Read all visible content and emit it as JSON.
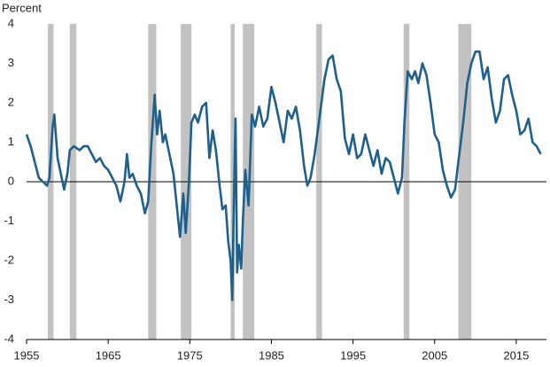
{
  "chart_data": {
    "type": "line",
    "y_label": "Percent",
    "color": "#1f5f8b",
    "shade_color": "#c2c2c2",
    "zero_line": true,
    "xlim": [
      1955,
      2018.7
    ],
    "xticks": [
      1955,
      1965,
      1975,
      1985,
      1995,
      2005,
      2015
    ],
    "ylim": [
      -4,
      4
    ],
    "yticks": [
      -4,
      -3,
      -2,
      -1,
      0,
      1,
      2,
      3,
      4
    ],
    "shaded_ranges": [
      [
        1957.6,
        1958.3
      ],
      [
        1960.3,
        1961.1
      ],
      [
        1969.9,
        1970.9
      ],
      [
        1973.9,
        1975.2
      ],
      [
        1980.0,
        1980.5
      ],
      [
        1981.5,
        1982.9
      ],
      [
        1990.5,
        1991.2
      ],
      [
        2001.2,
        2001.9
      ],
      [
        2007.9,
        2009.5
      ]
    ],
    "x": [
      1955.0,
      1955.5,
      1956.0,
      1956.5,
      1957.0,
      1957.5,
      1957.8,
      1958.2,
      1958.4,
      1958.8,
      1959.2,
      1959.6,
      1960.0,
      1960.3,
      1960.8,
      1961.5,
      1962.0,
      1962.5,
      1963.0,
      1963.5,
      1964.0,
      1964.5,
      1965.0,
      1965.5,
      1966.0,
      1966.5,
      1967.0,
      1967.3,
      1967.6,
      1968.0,
      1968.5,
      1969.0,
      1969.5,
      1969.9,
      1970.3,
      1970.7,
      1971.0,
      1971.3,
      1971.7,
      1972.0,
      1972.5,
      1973.0,
      1973.5,
      1973.8,
      1974.2,
      1974.5,
      1974.9,
      1975.2,
      1975.6,
      1976.0,
      1976.5,
      1977.0,
      1977.4,
      1977.8,
      1978.2,
      1978.6,
      1979.0,
      1979.4,
      1979.7,
      1980.0,
      1980.2,
      1980.4,
      1980.6,
      1980.8,
      1981.0,
      1981.3,
      1981.5,
      1981.8,
      1982.2,
      1982.6,
      1983.0,
      1983.5,
      1984.0,
      1984.5,
      1985.0,
      1985.5,
      1986.0,
      1986.5,
      1987.0,
      1987.5,
      1988.0,
      1988.5,
      1989.0,
      1989.4,
      1989.8,
      1990.3,
      1991.0,
      1991.5,
      1992.0,
      1992.5,
      1993.0,
      1993.5,
      1994.0,
      1994.5,
      1995.0,
      1995.5,
      1996.0,
      1996.5,
      1997.0,
      1997.5,
      1998.0,
      1998.5,
      1999.0,
      1999.5,
      2000.0,
      2000.5,
      2001.0,
      2001.3,
      2001.7,
      2002.2,
      2002.6,
      2003.0,
      2003.5,
      2004.0,
      2004.5,
      2005.0,
      2005.5,
      2006.0,
      2006.5,
      2007.0,
      2007.5,
      2007.9,
      2008.5,
      2009.0,
      2009.5,
      2010.0,
      2010.5,
      2011.0,
      2011.5,
      2012.0,
      2012.5,
      2013.0,
      2013.5,
      2014.0,
      2014.5,
      2015.0,
      2015.5,
      2016.0,
      2016.5,
      2017.0,
      2017.5,
      2018.0
    ],
    "values": [
      1.2,
      0.9,
      0.5,
      0.1,
      0.0,
      -0.1,
      0.1,
      1.4,
      1.7,
      0.6,
      0.2,
      -0.2,
      0.2,
      0.8,
      0.9,
      0.8,
      0.9,
      0.9,
      0.7,
      0.5,
      0.6,
      0.4,
      0.3,
      0.1,
      -0.1,
      -0.5,
      0.0,
      0.7,
      0.1,
      0.2,
      -0.1,
      -0.3,
      -0.8,
      -0.5,
      1.0,
      2.2,
      1.2,
      1.8,
      1.0,
      1.2,
      0.7,
      0.2,
      -0.8,
      -1.4,
      -0.3,
      -1.3,
      0.0,
      1.5,
      1.7,
      1.5,
      1.9,
      2.0,
      0.6,
      1.3,
      0.8,
      0.0,
      -0.7,
      -0.6,
      -1.5,
      -2.0,
      -3.0,
      -0.5,
      1.6,
      -2.3,
      -1.6,
      -2.2,
      -1.0,
      0.3,
      -0.6,
      1.7,
      1.4,
      1.9,
      1.4,
      1.6,
      2.4,
      2.0,
      1.5,
      1.0,
      1.8,
      1.6,
      1.9,
      1.3,
      0.4,
      -0.1,
      0.1,
      0.7,
      1.8,
      2.6,
      3.1,
      3.2,
      2.6,
      2.3,
      1.1,
      0.7,
      1.2,
      0.6,
      0.7,
      1.2,
      0.8,
      0.4,
      0.8,
      0.2,
      0.6,
      0.5,
      0.1,
      -0.3,
      0.1,
      1.5,
      2.8,
      2.6,
      2.8,
      2.5,
      3.0,
      2.7,
      2.0,
      1.2,
      1.0,
      0.3,
      -0.1,
      -0.4,
      -0.2,
      0.5,
      1.5,
      2.5,
      3.0,
      3.3,
      3.3,
      2.6,
      2.9,
      2.1,
      1.5,
      1.8,
      2.6,
      2.7,
      2.2,
      1.8,
      1.2,
      1.3,
      1.6,
      1.0,
      0.9,
      0.7
    ]
  }
}
